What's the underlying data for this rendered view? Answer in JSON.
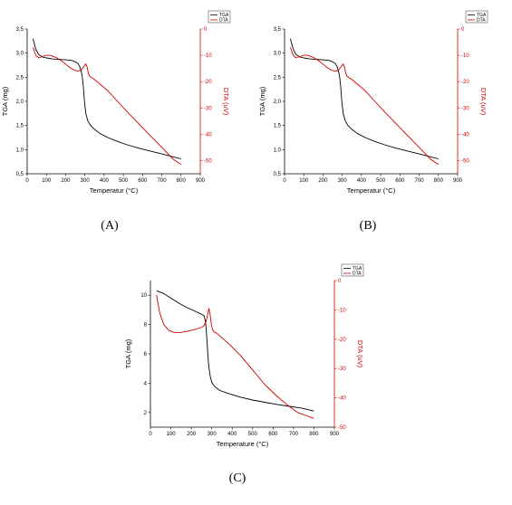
{
  "colors": {
    "tga": "#000000",
    "dta": "#d00000"
  },
  "chart_data": [
    {
      "type": "line",
      "caption": "(A)",
      "xlabel": "Temperatur (°C)",
      "ylabel": "TGA (mg)",
      "y2label": "DTA (uV)",
      "xlim": [
        0,
        900
      ],
      "ylim": [
        0.5,
        3.5
      ],
      "y2lim": [
        -55,
        0
      ],
      "xticks": [
        "0",
        "100",
        "200",
        "300",
        "400",
        "500",
        "600",
        "700",
        "800",
        "900"
      ],
      "yticks": [
        "0,5",
        "1,0",
        "1,5",
        "2,0",
        "2,5",
        "3,0",
        "3,5"
      ],
      "y2ticks": [
        "0",
        "-10",
        "-20",
        "-30",
        "-40",
        "-50"
      ],
      "legend": [
        "TGA",
        "DTA"
      ],
      "series": [
        {
          "name": "TGA",
          "axis": "left",
          "x": [
            30,
            45,
            60,
            80,
            100,
            130,
            160,
            200,
            230,
            250,
            265,
            275,
            285,
            292,
            298,
            305,
            315,
            330,
            350,
            380,
            420,
            470,
            520,
            580,
            640,
            700,
            750,
            800
          ],
          "y": [
            3.3,
            3.08,
            2.97,
            2.92,
            2.9,
            2.88,
            2.87,
            2.86,
            2.85,
            2.82,
            2.78,
            2.7,
            2.55,
            2.3,
            2.0,
            1.75,
            1.6,
            1.5,
            1.42,
            1.33,
            1.25,
            1.17,
            1.1,
            1.03,
            0.97,
            0.91,
            0.86,
            0.81
          ]
        },
        {
          "name": "DTA",
          "axis": "right",
          "x": [
            30,
            45,
            60,
            80,
            100,
            120,
            150,
            180,
            210,
            240,
            260,
            275,
            285,
            295,
            305,
            312,
            318,
            325,
            335,
            350,
            380,
            420,
            470,
            520,
            580,
            640,
            700,
            760,
            800
          ],
          "y": [
            -7,
            -10,
            -11,
            -10.5,
            -10,
            -10,
            -10.8,
            -12.2,
            -14,
            -15.5,
            -16,
            -15.8,
            -15.3,
            -14.2,
            -13.3,
            -14.5,
            -16.8,
            -18,
            -18.5,
            -19.2,
            -21,
            -23.5,
            -27.5,
            -31.5,
            -36,
            -40.5,
            -45,
            -49.5,
            -51.5
          ]
        }
      ]
    },
    {
      "type": "line",
      "caption": "(B)",
      "xlabel": "Temperatur (°C)",
      "ylabel": "TGA (mg)",
      "y2label": "DTA (uV)",
      "xlim": [
        0,
        900
      ],
      "ylim": [
        0.5,
        3.5
      ],
      "y2lim": [
        -55,
        0
      ],
      "xticks": [
        "0",
        "100",
        "200",
        "300",
        "400",
        "500",
        "600",
        "700",
        "800",
        "900"
      ],
      "yticks": [
        "0,5",
        "1,0",
        "1,5",
        "2,0",
        "2,5",
        "3,0",
        "3,5"
      ],
      "y2ticks": [
        "0",
        "-10",
        "-20",
        "-30",
        "-40",
        "-50"
      ],
      "legend": [
        "TGA",
        "DTA"
      ],
      "series": [
        {
          "name": "TGA",
          "axis": "left",
          "x": [
            30,
            45,
            60,
            80,
            100,
            130,
            160,
            200,
            230,
            250,
            265,
            275,
            285,
            292,
            298,
            305,
            315,
            330,
            350,
            380,
            420,
            470,
            520,
            580,
            640,
            700,
            750,
            800
          ],
          "y": [
            3.3,
            3.08,
            2.97,
            2.92,
            2.9,
            2.88,
            2.87,
            2.86,
            2.85,
            2.82,
            2.78,
            2.7,
            2.55,
            2.3,
            2.0,
            1.75,
            1.6,
            1.5,
            1.42,
            1.33,
            1.25,
            1.17,
            1.1,
            1.03,
            0.97,
            0.91,
            0.86,
            0.81
          ]
        },
        {
          "name": "DTA",
          "axis": "right",
          "x": [
            30,
            45,
            60,
            80,
            100,
            120,
            150,
            180,
            210,
            240,
            260,
            275,
            285,
            295,
            305,
            312,
            318,
            325,
            335,
            350,
            380,
            420,
            470,
            520,
            580,
            640,
            700,
            760,
            800
          ],
          "y": [
            -7,
            -10,
            -11,
            -10.5,
            -10,
            -10,
            -10.8,
            -12.2,
            -14,
            -15.5,
            -16,
            -15.8,
            -15.3,
            -14.2,
            -13.3,
            -14.5,
            -16.8,
            -18,
            -18.5,
            -19.2,
            -21,
            -23.5,
            -27.5,
            -31.5,
            -36,
            -40.5,
            -45,
            -49.5,
            -51.5
          ]
        }
      ]
    },
    {
      "type": "line",
      "caption": "(C)",
      "xlabel": "Temperature (°C)",
      "ylabel": "TGA (mg)",
      "y2label": "DTA (uV)",
      "xlim": [
        0,
        900
      ],
      "ylim": [
        1,
        11
      ],
      "y2lim": [
        -50,
        0
      ],
      "xticks": [
        "0",
        "100",
        "200",
        "300",
        "400",
        "500",
        "600",
        "700",
        "800",
        "900"
      ],
      "yticks": [
        "2",
        "4",
        "6",
        "8",
        "10"
      ],
      "y2ticks": [
        "0",
        "-10",
        "-20",
        "-30",
        "-40",
        "-50"
      ],
      "legend": [
        "TGA",
        "DTA"
      ],
      "series": [
        {
          "name": "TGA",
          "axis": "left",
          "x": [
            30,
            60,
            100,
            140,
            180,
            220,
            250,
            262,
            268,
            272,
            276,
            280,
            285,
            292,
            300,
            315,
            340,
            380,
            440,
            500,
            560,
            620,
            680,
            740,
            800
          ],
          "y": [
            10.3,
            10.15,
            9.8,
            9.45,
            9.15,
            8.9,
            8.7,
            8.6,
            8.3,
            7.8,
            7.0,
            6.1,
            5.2,
            4.5,
            4.05,
            3.75,
            3.5,
            3.3,
            3.05,
            2.85,
            2.7,
            2.55,
            2.42,
            2.3,
            2.1
          ]
        },
        {
          "name": "DTA",
          "axis": "right",
          "x": [
            30,
            45,
            65,
            90,
            120,
            150,
            180,
            210,
            240,
            260,
            272,
            280,
            286,
            292,
            298,
            304,
            312,
            325,
            350,
            390,
            440,
            500,
            560,
            620,
            680,
            720,
            760,
            800
          ],
          "y": [
            -5,
            -11,
            -15,
            -17,
            -17.8,
            -17.7,
            -17.3,
            -16.8,
            -16.2,
            -15.6,
            -14,
            -11.5,
            -9.5,
            -11.5,
            -15,
            -16.8,
            -17.5,
            -18,
            -19.5,
            -22,
            -25.5,
            -30.5,
            -35.5,
            -39.5,
            -43,
            -45,
            -46,
            -47
          ]
        }
      ]
    }
  ]
}
